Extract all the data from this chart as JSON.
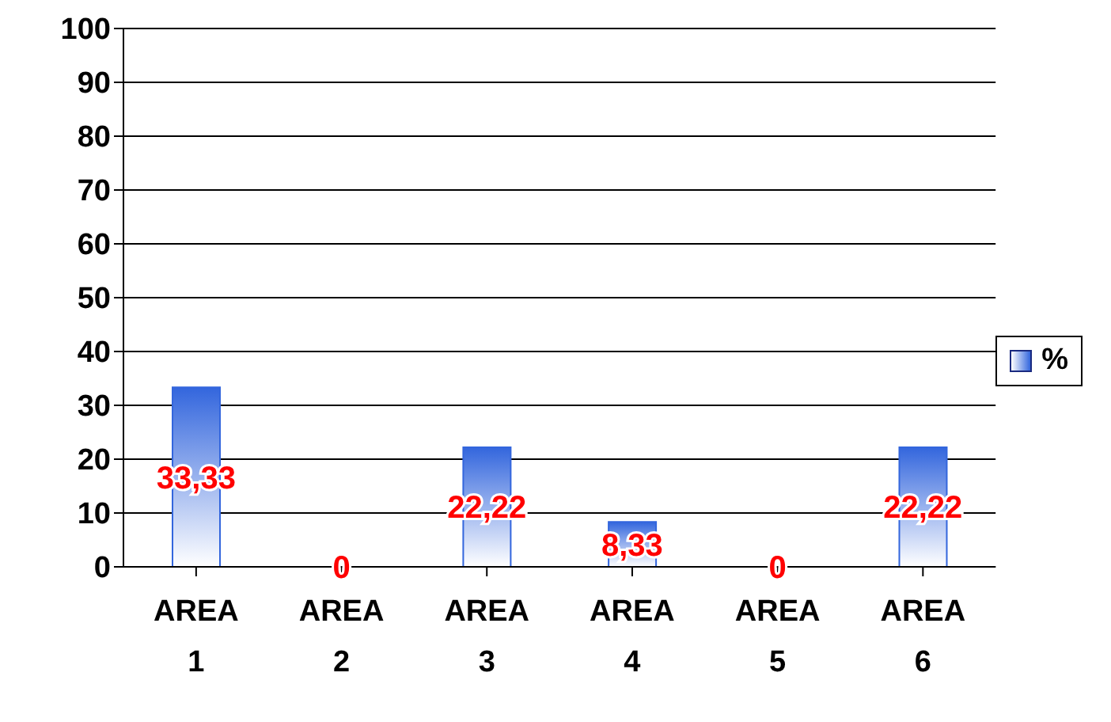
{
  "chart_data": {
    "type": "bar",
    "categories": [
      "AREA 1",
      "AREA 2",
      "AREA 3",
      "AREA 4",
      "AREA 5",
      "AREA 6"
    ],
    "series": [
      {
        "name": "%",
        "color": "#3366dd",
        "values": [
          33.33,
          0,
          22.22,
          8.33,
          0,
          22.22
        ],
        "value_labels": [
          "33,33",
          "0",
          "22,22",
          "8,33",
          "0",
          "22,22"
        ]
      }
    ],
    "ylim": [
      0,
      100
    ],
    "yticks": [
      0,
      10,
      20,
      30,
      40,
      50,
      60,
      70,
      80,
      90,
      100
    ],
    "grid": "y",
    "legend": "right"
  }
}
